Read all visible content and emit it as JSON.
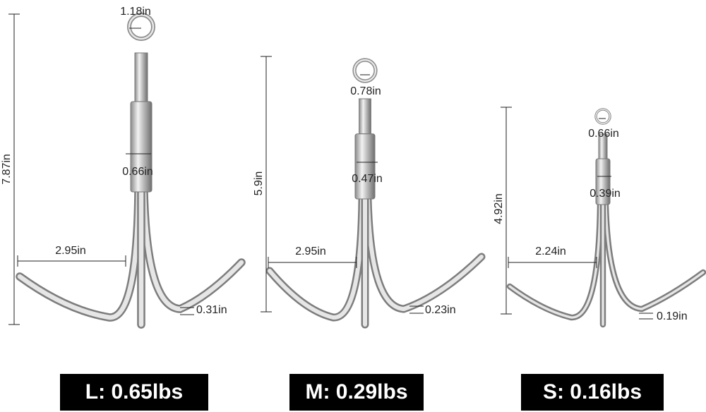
{
  "anchors": [
    {
      "label": "L: 0.65lbs",
      "height": "7.87in",
      "eye": "1.18in",
      "shank": "0.66in",
      "span": "2.95in",
      "wire": "0.31in"
    },
    {
      "label": "M: 0.29lbs",
      "height": "5.9in",
      "eye": "0.78in",
      "shank": "0.47in",
      "span": "2.95in",
      "wire": "0.23in"
    },
    {
      "label": "S: 0.16lbs",
      "height": "4.92in",
      "eye": "0.66in",
      "shank": "0.39in",
      "span": "2.24in",
      "wire": "0.19in"
    }
  ]
}
